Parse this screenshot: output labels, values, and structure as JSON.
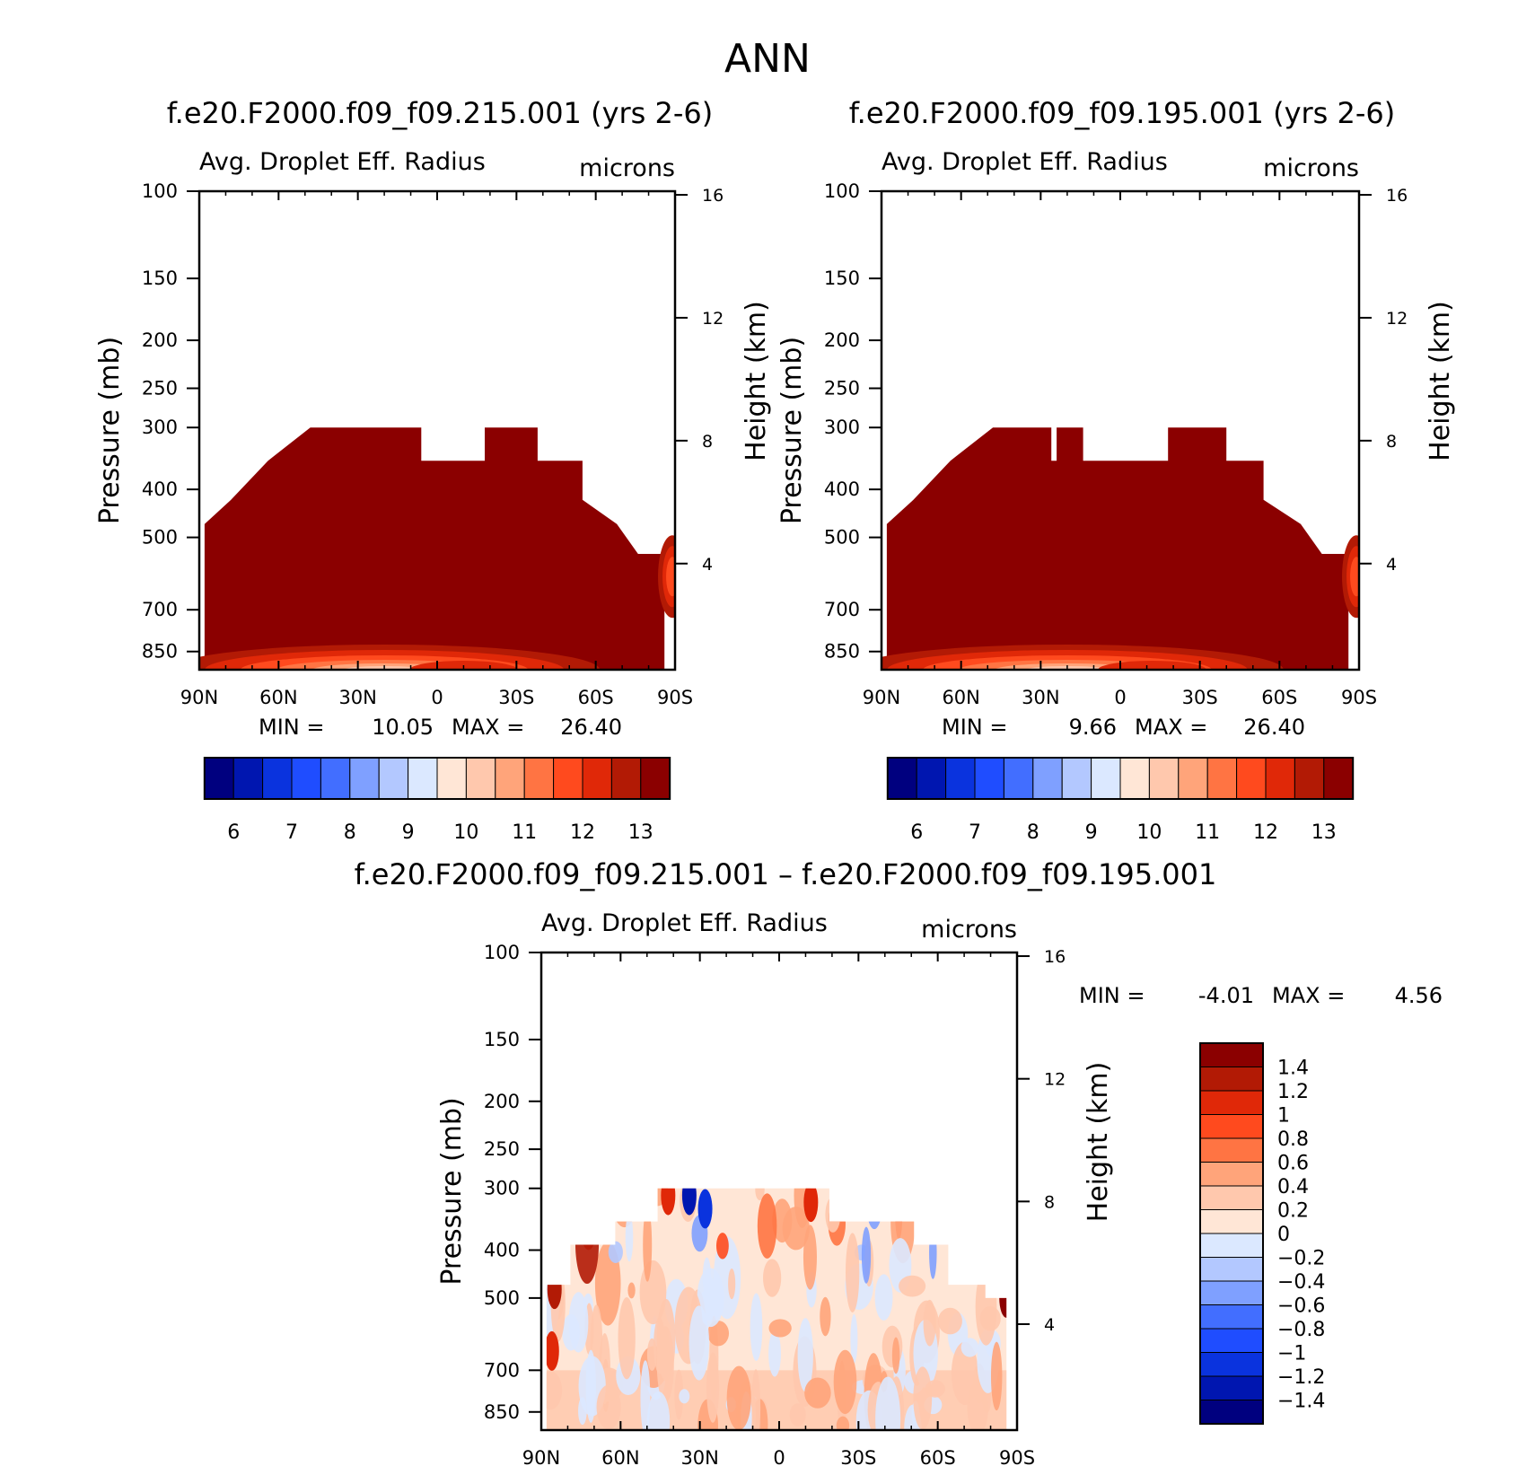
{
  "figure": {
    "title": "ANN"
  },
  "colors": {
    "abs_levels": [
      "#00007f",
      "#0016b0",
      "#0a33de",
      "#1f4dff",
      "#426eff",
      "#7fa0ff",
      "#b3c8ff",
      "#dbe8ff",
      "#ffe6d6",
      "#ffc8ad",
      "#ffa47a",
      "#ff7443",
      "#ff4a1e",
      "#e02808",
      "#b21a05",
      "#8b0000"
    ],
    "diff_levels": [
      "#00007f",
      "#0016b0",
      "#0a33de",
      "#1f4dff",
      "#426eff",
      "#7fa0ff",
      "#b3c8ff",
      "#dbe8ff",
      "#ffe6d6",
      "#ffc8ad",
      "#ffa47a",
      "#ff7443",
      "#ff4a1e",
      "#e02808",
      "#b21a05",
      "#8b0000"
    ]
  },
  "chart_data": [
    {
      "type": "heatmap",
      "id": "panel1",
      "title": "f.e20.F2000.f09_f09.215.001 (yrs 2-6)",
      "variable": "Avg. Droplet Eff. Radius",
      "units": "microns",
      "xlabel": "",
      "ylabel": "Pressure (mb)",
      "y2label": "Height (km)",
      "x_ticks": [
        "90N",
        "60N",
        "30N",
        "0",
        "30S",
        "60S",
        "90S"
      ],
      "x_range": [
        90,
        -90
      ],
      "y_ticks": [
        100,
        150,
        200,
        250,
        300,
        400,
        500,
        700,
        850
      ],
      "y_range": [
        100,
        925
      ],
      "y2_ticks": [
        16,
        12,
        8,
        4
      ],
      "min_label": "MIN =",
      "min_value": "10.05",
      "max_label": "MAX =",
      "max_value": "26.40",
      "colorbar_labels": [
        "6",
        "7",
        "8",
        "9",
        "10",
        "11",
        "12",
        "13"
      ],
      "cloud_top_profile": [
        [
          88,
          470
        ],
        [
          78,
          420
        ],
        [
          64,
          350
        ],
        [
          48,
          300
        ],
        [
          6,
          300
        ],
        [
          6,
          350
        ],
        [
          -18,
          350
        ],
        [
          -18,
          300
        ],
        [
          -38,
          300
        ],
        [
          -38,
          350
        ],
        [
          -55,
          350
        ],
        [
          -55,
          420
        ],
        [
          -68,
          470
        ],
        [
          -76,
          540
        ],
        [
          -86,
          540
        ],
        [
          -86,
          925
        ]
      ],
      "low_values_near_surface": "10-13"
    },
    {
      "type": "heatmap",
      "id": "panel2",
      "title": "f.e20.F2000.f09_f09.195.001 (yrs 2-6)",
      "variable": "Avg. Droplet Eff. Radius",
      "units": "microns",
      "xlabel": "",
      "ylabel": "Pressure (mb)",
      "y2label": "Height (km)",
      "x_ticks": [
        "90N",
        "60N",
        "30N",
        "0",
        "30S",
        "60S",
        "90S"
      ],
      "x_range": [
        90,
        -90
      ],
      "y_ticks": [
        100,
        150,
        200,
        250,
        300,
        400,
        500,
        700,
        850
      ],
      "y_range": [
        100,
        925
      ],
      "y2_ticks": [
        16,
        12,
        8,
        4
      ],
      "min_label": "MIN =",
      "min_value": "9.66",
      "max_label": "MAX =",
      "max_value": "26.40",
      "colorbar_labels": [
        "6",
        "7",
        "8",
        "9",
        "10",
        "11",
        "12",
        "13"
      ],
      "cloud_top_profile": [
        [
          88,
          470
        ],
        [
          78,
          420
        ],
        [
          64,
          350
        ],
        [
          48,
          300
        ],
        [
          26,
          300
        ],
        [
          26,
          350
        ],
        [
          24,
          350
        ],
        [
          24,
          300
        ],
        [
          14,
          300
        ],
        [
          14,
          350
        ],
        [
          -18,
          350
        ],
        [
          -18,
          300
        ],
        [
          -40,
          300
        ],
        [
          -40,
          350
        ],
        [
          -54,
          350
        ],
        [
          -54,
          420
        ],
        [
          -68,
          470
        ],
        [
          -76,
          540
        ],
        [
          -86,
          540
        ],
        [
          -86,
          925
        ]
      ],
      "low_values_near_surface": "9.66-13"
    },
    {
      "type": "heatmap",
      "id": "panel3",
      "title": "f.e20.F2000.f09_f09.215.001 – f.e20.F2000.f09_f09.195.001",
      "variable": "Avg. Droplet Eff. Radius",
      "units": "microns",
      "xlabel": "",
      "ylabel": "Pressure (mb)",
      "y2label": "Height (km)",
      "x_ticks": [
        "90N",
        "60N",
        "30N",
        "0",
        "30S",
        "60S",
        "90S"
      ],
      "x_range": [
        90,
        -90
      ],
      "y_ticks": [
        100,
        150,
        200,
        250,
        300,
        400,
        500,
        700,
        850
      ],
      "y_range": [
        100,
        925
      ],
      "y2_ticks": [
        16,
        12,
        8,
        4
      ],
      "min_label": "MIN =",
      "min_value": "-4.01",
      "max_label": "MAX =",
      "max_value": "4.56",
      "colorbar_labels": [
        "1.4",
        "1.2",
        "1",
        "0.8",
        "0.6",
        "0.4",
        "0.2",
        "0",
        "−0.2",
        "−0.4",
        "−0.6",
        "−0.8",
        "−1",
        "−1.2",
        "−1.4"
      ],
      "cloud_top_profile": [
        [
          88,
          470
        ],
        [
          79,
          470
        ],
        [
          79,
          390
        ],
        [
          62,
          390
        ],
        [
          62,
          350
        ],
        [
          46,
          350
        ],
        [
          46,
          300
        ],
        [
          -19,
          300
        ],
        [
          -19,
          350
        ],
        [
          -51,
          350
        ],
        [
          -51,
          390
        ],
        [
          -64,
          390
        ],
        [
          -64,
          470
        ],
        [
          -78,
          470
        ],
        [
          -78,
          500
        ],
        [
          -86,
          500
        ],
        [
          -86,
          925
        ]
      ]
    }
  ]
}
